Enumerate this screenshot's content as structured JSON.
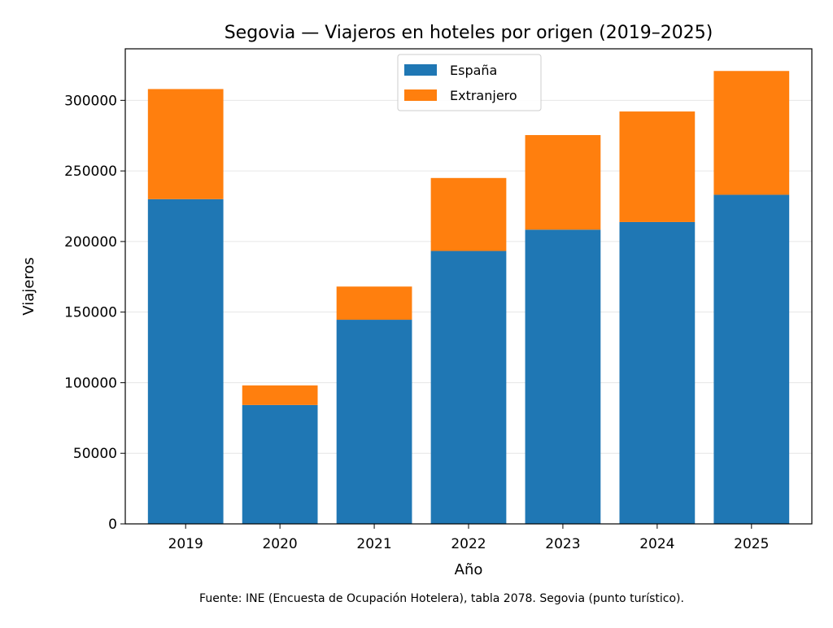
{
  "chart_data": {
    "type": "bar",
    "stacked": true,
    "title": "Segovia — Viajeros en hoteles por origen (2019–2025)",
    "xlabel": "Año",
    "ylabel": "Viajeros",
    "footnote": "Fuente: INE (Encuesta de Ocupación Hotelera), tabla 2078. Segovia (punto turístico).",
    "categories": [
      "2019",
      "2020",
      "2021",
      "2022",
      "2023",
      "2024",
      "2025"
    ],
    "series": [
      {
        "name": "España",
        "color": "#1f77b4",
        "values": [
          230000,
          84200,
          144600,
          193300,
          208400,
          213800,
          233100
        ]
      },
      {
        "name": "Extranjero",
        "color": "#ff7f0e",
        "values": [
          78000,
          13900,
          23500,
          51700,
          67000,
          78300,
          87700
        ]
      }
    ],
    "ylim": [
      0,
      336500
    ],
    "yticks": [
      0,
      50000,
      100000,
      150000,
      200000,
      250000,
      300000
    ],
    "grid": "y",
    "legend": "top-center"
  }
}
